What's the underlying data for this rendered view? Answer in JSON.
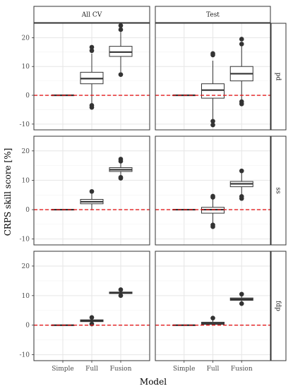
{
  "chart_data": {
    "type": "boxplot",
    "xlabel": "Model",
    "ylabel": "CRPS skill score [%]",
    "ylim": [
      -12,
      25
    ],
    "y_ticks": [
      -10,
      0,
      10,
      20
    ],
    "categories": [
      "Simple",
      "Full",
      "Fusion"
    ],
    "columns": [
      "All CV",
      "Test"
    ],
    "rows": [
      "pd",
      "ss",
      "fdp"
    ],
    "reference_line": {
      "y": 0,
      "style": "dashed",
      "color": "#e31a1c"
    },
    "grid": true,
    "panels": [
      {
        "column": "All CV",
        "row": "pd",
        "boxes": [
          {
            "category": "Simple",
            "q1": 0,
            "median": 0,
            "q3": 0,
            "whisker_low": 0,
            "whisker_high": 0,
            "outliers": []
          },
          {
            "category": "Full",
            "q1": 4,
            "median": 5.8,
            "q3": 8,
            "whisker_low": -3,
            "whisker_high": 14.5,
            "outliers": [
              -4.2,
              -3.5,
              15.5,
              16.7
            ]
          },
          {
            "category": "Fusion",
            "q1": 13.5,
            "median": 15,
            "q3": 17,
            "whisker_low": 8,
            "whisker_high": 22,
            "outliers": [
              7.2,
              22.8,
              24.2
            ]
          }
        ]
      },
      {
        "column": "Test",
        "row": "pd",
        "boxes": [
          {
            "category": "Simple",
            "q1": 0,
            "median": 0,
            "q3": 0,
            "whisker_low": 0,
            "whisker_high": 0,
            "outliers": []
          },
          {
            "category": "Full",
            "q1": -1,
            "median": 1.8,
            "q3": 4,
            "whisker_low": -8.5,
            "whisker_high": 12,
            "outliers": [
              -9,
              -10.3,
              14,
              14.5
            ]
          },
          {
            "category": "Fusion",
            "q1": 5,
            "median": 7.5,
            "q3": 10,
            "whisker_low": -2,
            "whisker_high": 17,
            "outliers": [
              -2.2,
              -3,
              17.8,
              19.5
            ]
          }
        ]
      },
      {
        "column": "All CV",
        "row": "ss",
        "boxes": [
          {
            "category": "Simple",
            "q1": 0,
            "median": 0,
            "q3": 0,
            "whisker_low": 0,
            "whisker_high": 0,
            "outliers": []
          },
          {
            "category": "Full",
            "q1": 2,
            "median": 2.7,
            "q3": 3.5,
            "whisker_low": 0,
            "whisker_high": 5.5,
            "outliers": [
              6.2
            ]
          },
          {
            "category": "Fusion",
            "q1": 13,
            "median": 13.6,
            "q3": 14.3,
            "whisker_low": 11.5,
            "whisker_high": 16,
            "outliers": [
              10.7,
              11,
              16.5,
              17.2
            ]
          }
        ]
      },
      {
        "column": "Test",
        "row": "ss",
        "boxes": [
          {
            "category": "Simple",
            "q1": 0,
            "median": 0,
            "q3": 0,
            "whisker_low": 0,
            "whisker_high": 0,
            "outliers": []
          },
          {
            "category": "Full",
            "q1": -1.2,
            "median": 0,
            "q3": 0.8,
            "whisker_low": -4.5,
            "whisker_high": 3.5,
            "outliers": [
              -5.2,
              -5.8,
              4.2,
              4.6
            ]
          },
          {
            "category": "Fusion",
            "q1": 7.8,
            "median": 8.8,
            "q3": 9.6,
            "whisker_low": 5,
            "whisker_high": 12.5,
            "outliers": [
              3.8,
              4.5,
              13.2
            ]
          }
        ]
      },
      {
        "column": "All CV",
        "row": "fdp",
        "boxes": [
          {
            "category": "Simple",
            "q1": 0,
            "median": 0,
            "q3": 0,
            "whisker_low": 0,
            "whisker_high": 0,
            "outliers": []
          },
          {
            "category": "Full",
            "q1": 1.2,
            "median": 1.5,
            "q3": 1.8,
            "whisker_low": 0.8,
            "whisker_high": 2.2,
            "outliers": [
              0.4,
              2.6
            ]
          },
          {
            "category": "Fusion",
            "q1": 10.7,
            "median": 11,
            "q3": 11.2,
            "whisker_low": 10.3,
            "whisker_high": 11.6,
            "outliers": [
              10,
              12
            ]
          }
        ]
      },
      {
        "column": "Test",
        "row": "fdp",
        "boxes": [
          {
            "category": "Simple",
            "q1": 0,
            "median": 0,
            "q3": 0,
            "whisker_low": 0,
            "whisker_high": 0,
            "outliers": []
          },
          {
            "category": "Full",
            "q1": 0.3,
            "median": 0.6,
            "q3": 1,
            "whisker_low": 0,
            "whisker_high": 1.8,
            "outliers": [
              2.4
            ]
          },
          {
            "category": "Fusion",
            "q1": 8.4,
            "median": 8.8,
            "q3": 9.2,
            "whisker_low": 7.8,
            "whisker_high": 10,
            "outliers": [
              7.3,
              10.5
            ]
          }
        ]
      }
    ]
  }
}
